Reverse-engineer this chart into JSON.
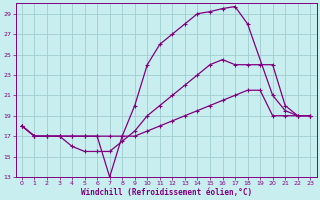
{
  "xlabel": "Windchill (Refroidissement éolien,°C)",
  "ylabel": "",
  "bg_color": "#c8eef0",
  "grid_color": "#a0cdd0",
  "line_color": "#800080",
  "xlim": [
    -0.5,
    23.5
  ],
  "ylim": [
    13,
    30
  ],
  "xticks": [
    0,
    1,
    2,
    3,
    4,
    5,
    6,
    7,
    8,
    9,
    10,
    11,
    12,
    13,
    14,
    15,
    16,
    17,
    18,
    19,
    20,
    21,
    22,
    23
  ],
  "yticks": [
    13,
    15,
    17,
    19,
    21,
    23,
    25,
    27,
    29
  ],
  "line1_x": [
    0,
    1,
    2,
    3,
    4,
    5,
    6,
    7,
    8,
    9,
    10,
    11,
    12,
    13,
    14,
    15,
    16,
    17,
    18,
    20,
    21,
    22,
    23
  ],
  "line1_y": [
    18,
    17,
    17,
    17,
    17,
    17,
    17,
    13,
    17,
    20,
    24,
    26,
    27,
    28,
    29,
    29.2,
    29.5,
    29.7,
    28,
    21,
    19.5,
    19,
    19
  ],
  "line2_x": [
    0,
    1,
    2,
    3,
    4,
    5,
    6,
    7,
    8,
    9,
    10,
    11,
    12,
    13,
    14,
    15,
    16,
    17,
    18,
    19,
    20,
    21,
    22,
    23
  ],
  "line2_y": [
    18,
    17,
    17,
    17,
    16,
    15.5,
    15.5,
    15.5,
    16.5,
    17.5,
    19,
    20,
    21,
    22,
    23,
    24,
    24.5,
    24,
    24,
    24,
    24,
    20,
    19,
    19
  ],
  "line3_x": [
    0,
    1,
    2,
    3,
    4,
    5,
    6,
    7,
    8,
    9,
    10,
    11,
    12,
    13,
    14,
    15,
    16,
    17,
    18,
    19,
    20,
    21,
    22,
    23
  ],
  "line3_y": [
    18,
    17,
    17,
    17,
    17,
    17,
    17,
    17,
    17,
    17,
    17.5,
    18,
    18.5,
    19,
    19.5,
    20,
    20.5,
    21,
    21.5,
    21.5,
    19,
    19,
    19,
    19
  ]
}
